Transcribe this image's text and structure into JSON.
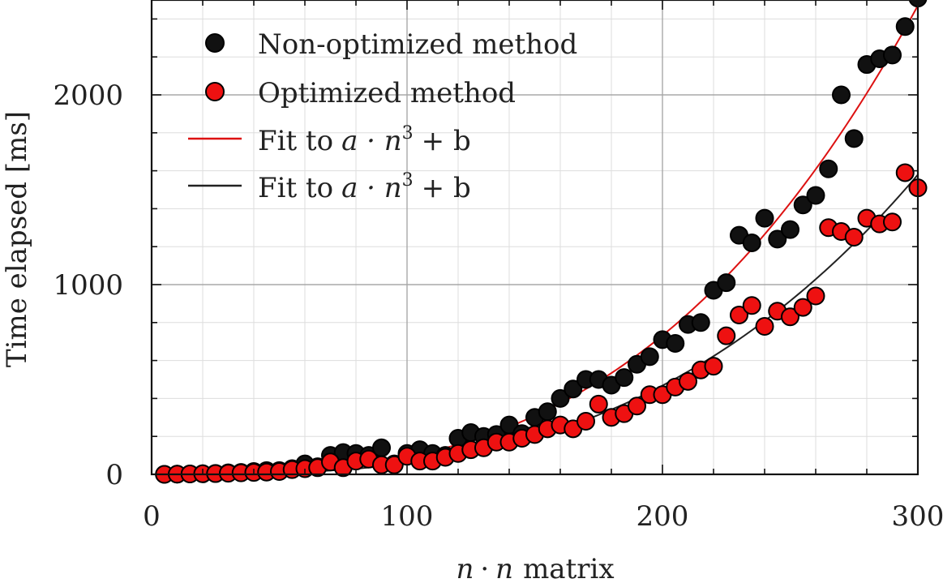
{
  "chart_data": {
    "type": "scatter",
    "title": "",
    "xlabel_parts": {
      "a": "n",
      "op": "·",
      "b": "n",
      "rest": "matrix"
    },
    "ylabel": "Time elapsed [ms]",
    "xlim": [
      0,
      300
    ],
    "ylim": [
      0,
      2500
    ],
    "xticks": [
      0,
      100,
      200,
      300
    ],
    "yticks": [
      0,
      1000,
      2000
    ],
    "xtick_labels": [
      "0",
      "100",
      "200",
      "300"
    ],
    "ytick_labels": [
      "0",
      "1000",
      "2000"
    ],
    "grid": true,
    "legend_position": "top-left",
    "legend": [
      {
        "label": "Non-optimized method",
        "kind": "marker",
        "color": "#111111"
      },
      {
        "label": "Optimized method",
        "kind": "marker",
        "color": "#ee1111"
      },
      {
        "label_parts": {
          "pre": "Fit to",
          "math": "a · n",
          "sup": "3",
          "post": "+ b"
        },
        "kind": "line",
        "color": "#dd1111"
      },
      {
        "label_parts": {
          "pre": "Fit to",
          "math": "a · n",
          "sup": "3",
          "post": "+ b"
        },
        "kind": "line",
        "color": "#222222"
      }
    ],
    "series": [
      {
        "name": "Non-optimized method",
        "color": "#111111",
        "x": [
          5,
          10,
          15,
          20,
          25,
          30,
          35,
          40,
          45,
          50,
          55,
          60,
          65,
          70,
          75,
          80,
          85,
          90,
          95,
          100,
          105,
          110,
          115,
          120,
          125,
          130,
          135,
          140,
          145,
          150,
          155,
          160,
          165,
          170,
          175,
          180,
          185,
          190,
          195,
          200,
          205,
          210,
          215,
          220,
          225,
          230,
          235,
          240,
          245,
          250,
          255,
          260,
          265,
          270,
          275,
          280,
          285,
          290,
          295,
          300
        ],
        "y": [
          0,
          1,
          2,
          3,
          5,
          8,
          10,
          15,
          20,
          20,
          30,
          55,
          40,
          100,
          115,
          110,
          100,
          140,
          55,
          110,
          130,
          110,
          100,
          190,
          220,
          200,
          210,
          260,
          215,
          300,
          330,
          400,
          450,
          500,
          500,
          470,
          510,
          580,
          620,
          710,
          690,
          790,
          800,
          970,
          1010,
          1260,
          1220,
          1350,
          1240,
          1290,
          1420,
          1470,
          1610,
          2000,
          1770,
          2160,
          2190,
          2210,
          2360,
          2510
        ]
      },
      {
        "name": "Optimized method",
        "color": "#ee1111",
        "x": [
          5,
          10,
          15,
          20,
          25,
          30,
          35,
          40,
          45,
          50,
          55,
          60,
          65,
          70,
          75,
          80,
          85,
          90,
          95,
          100,
          105,
          110,
          115,
          120,
          125,
          130,
          135,
          140,
          145,
          150,
          155,
          160,
          165,
          170,
          175,
          180,
          185,
          190,
          195,
          200,
          205,
          210,
          215,
          220,
          225,
          230,
          235,
          240,
          245,
          250,
          255,
          260,
          265,
          270,
          275,
          280,
          285,
          290,
          295,
          300
        ],
        "y": [
          0,
          1,
          2,
          3,
          4,
          6,
          8,
          10,
          12,
          15,
          25,
          30,
          35,
          65,
          35,
          70,
          80,
          50,
          50,
          95,
          70,
          70,
          90,
          110,
          130,
          140,
          170,
          170,
          190,
          210,
          240,
          260,
          240,
          280,
          370,
          300,
          320,
          360,
          420,
          420,
          460,
          490,
          550,
          570,
          730,
          840,
          890,
          780,
          860,
          830,
          880,
          940,
          1300,
          1280,
          1250,
          1350,
          1320,
          1330,
          1590,
          1510
        ]
      }
    ],
    "fits": [
      {
        "color": "#dd1111",
        "a": 9.15e-05,
        "b": 0
      },
      {
        "color": "#222222",
        "a": 5.85e-05,
        "b": 0
      }
    ]
  }
}
